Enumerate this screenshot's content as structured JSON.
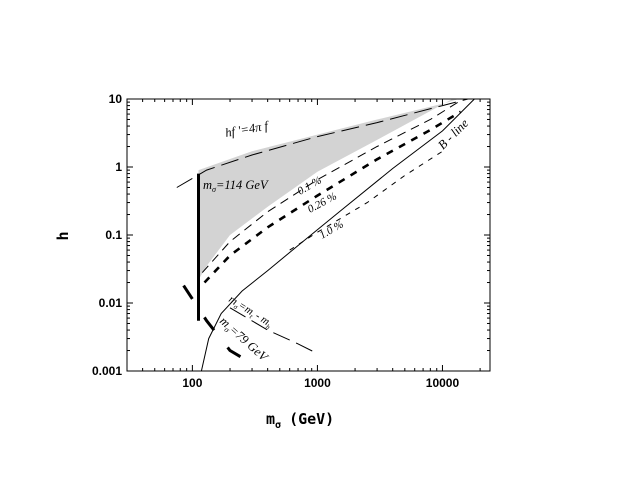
{
  "chart_data": {
    "type": "line",
    "xscale": "log",
    "yscale": "log",
    "xlim": [
      30,
      24000
    ],
    "ylim": [
      0.001,
      10
    ],
    "xlabel_main": "m",
    "xlabel_sub": "σ",
    "xlabel_unit": "(GeV)",
    "ylabel": "h",
    "x_ticks": [
      "100",
      "1000",
      "10000"
    ],
    "y_ticks": [
      "10",
      "1",
      "0.1",
      "0.01",
      "0.001"
    ],
    "x_tick_values": [
      100,
      1000,
      10000
    ],
    "y_tick_values": [
      10,
      1,
      0.1,
      0.01,
      0.001
    ],
    "shaded_region": {
      "color": "#d3d3d3",
      "upper": [
        [
          112,
          0.9
        ],
        [
          300,
          1.7
        ],
        [
          1000,
          3.0
        ],
        [
          3000,
          5.0
        ],
        [
          10000,
          8.5
        ],
        [
          13500,
          10
        ]
      ],
      "lower": [
        [
          12000,
          10
        ],
        [
          3000,
          2.5
        ],
        [
          1000,
          0.85
        ],
        [
          400,
          0.26
        ],
        [
          200,
          0.1
        ],
        [
          130,
          0.035
        ],
        [
          112,
          0.022
        ]
      ]
    },
    "series": [
      {
        "label": "B - line",
        "style": "solid",
        "points": [
          [
            118,
            0.001
          ],
          [
            135,
            0.003
          ],
          [
            170,
            0.007
          ],
          [
            250,
            0.015
          ],
          [
            400,
            0.03
          ],
          [
            700,
            0.07
          ],
          [
            1500,
            0.22
          ],
          [
            4000,
            0.95
          ],
          [
            10000,
            3.4
          ],
          [
            18000,
            10
          ]
        ]
      },
      {
        "label": "hf'=4πf",
        "style": "long-dash",
        "points": [
          [
            75,
            0.5
          ],
          [
            130,
            0.9
          ],
          [
            300,
            1.5
          ],
          [
            1000,
            2.8
          ],
          [
            3000,
            4.5
          ],
          [
            10000,
            8.0
          ],
          [
            16000,
            10.5
          ]
        ]
      },
      {
        "label": "0.1 %",
        "style": "dash",
        "points": [
          [
            120,
            0.028
          ],
          [
            200,
            0.08
          ],
          [
            400,
            0.22
          ],
          [
            1000,
            0.65
          ],
          [
            3000,
            2.0
          ],
          [
            8000,
            5.0
          ],
          [
            14000,
            9.5
          ]
        ]
      },
      {
        "label": "0.26 %",
        "style": "heavy-dash",
        "points": [
          [
            125,
            0.02
          ],
          [
            200,
            0.05
          ],
          [
            400,
            0.13
          ],
          [
            1000,
            0.38
          ],
          [
            3000,
            1.3
          ],
          [
            8000,
            3.5
          ],
          [
            14000,
            6.5
          ]
        ]
      },
      {
        "label": "1.0 %",
        "style": "short-dash",
        "points": [
          [
            600,
            0.06
          ],
          [
            1000,
            0.11
          ],
          [
            2500,
            0.3
          ],
          [
            5000,
            0.75
          ],
          [
            10000,
            1.7
          ]
        ]
      },
      {
        "label": "mσ=mt - mh",
        "style": "long-dash",
        "points": [
          [
            200,
            0.0085
          ],
          [
            400,
            0.004
          ],
          [
            700,
            0.0025
          ],
          [
            1000,
            0.0018
          ]
        ]
      },
      {
        "label": "mσ=79 GeV",
        "style": "heavy-long-dash",
        "points": [
          [
            85,
            0.018
          ],
          [
            130,
            0.0055
          ],
          [
            200,
            0.002
          ],
          [
            260,
            0.0015
          ]
        ]
      },
      {
        "label": "mσ=114 GeV",
        "style": "heavy-solid",
        "points": [
          [
            112,
            0.8
          ],
          [
            112,
            0.0055
          ]
        ]
      }
    ],
    "annotations": {
      "hf": "hf '=4π f",
      "mass114_m": "m",
      "mass114_sub": "σ",
      "mass114_val": "=114 GeV",
      "pct01": "0.1 %",
      "pct026": "0.26 %",
      "pct10": "1.0 %",
      "bline": "B - line",
      "mt_m": "m",
      "mt_sub1": "σ",
      "mt_eq": "=m",
      "mt_sub2": "t",
      "mt_minus": " - m",
      "mt_sub3": "h",
      "m79_m": "m",
      "m79_sub": "σ",
      "m79_val": "=79 GeV"
    }
  }
}
